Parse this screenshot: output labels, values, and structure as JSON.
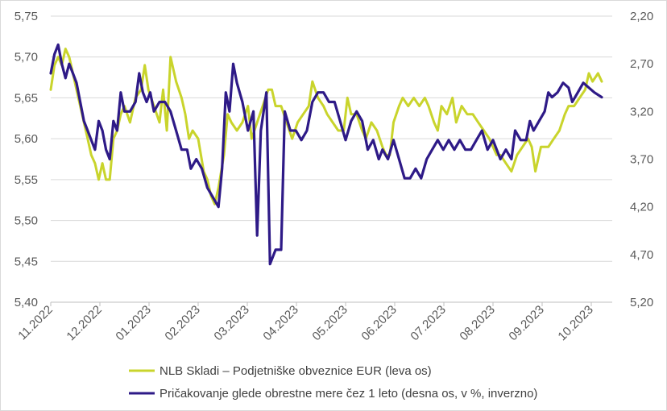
{
  "chart_data": {
    "type": "line",
    "x_labels": [
      "11.2022",
      "12.2022",
      "01.2023",
      "02.2023",
      "03.2023",
      "04.2023",
      "05.2023",
      "06.2023",
      "07.2023",
      "08.2023",
      "09.2023",
      "10.2023"
    ],
    "left_axis": {
      "ticks": [
        "5,75",
        "5,70",
        "5,65",
        "5,60",
        "5,55",
        "5,50",
        "5,45",
        "5,40"
      ],
      "ylim": [
        5.4,
        5.75
      ]
    },
    "right_axis": {
      "ticks": [
        "2,20",
        "2,70",
        "3,20",
        "3,70",
        "4,20",
        "4,70",
        "5,20"
      ],
      "ylim": [
        2.2,
        5.2
      ],
      "inverted": true
    },
    "grid": "horizontal",
    "legend_position": "bottom",
    "series": [
      {
        "name": "NLB Skladi – Podjetniške obveznice EUR (leva os)",
        "axis": "left",
        "color": "#c9d42c",
        "points": [
          [
            0.0,
            5.66
          ],
          [
            0.1,
            5.69
          ],
          [
            0.2,
            5.7
          ],
          [
            0.3,
            5.69
          ],
          [
            0.4,
            5.71
          ],
          [
            0.5,
            5.7
          ],
          [
            0.6,
            5.68
          ],
          [
            0.7,
            5.66
          ],
          [
            0.8,
            5.64
          ],
          [
            0.9,
            5.62
          ],
          [
            1.0,
            5.6
          ],
          [
            1.1,
            5.58
          ],
          [
            1.2,
            5.57
          ],
          [
            1.3,
            5.55
          ],
          [
            1.4,
            5.57
          ],
          [
            1.5,
            5.55
          ],
          [
            1.6,
            5.55
          ],
          [
            1.7,
            5.6
          ],
          [
            1.8,
            5.61
          ],
          [
            1.9,
            5.63
          ],
          [
            2.0,
            5.64
          ],
          [
            2.15,
            5.62
          ],
          [
            2.3,
            5.65
          ],
          [
            2.45,
            5.66
          ],
          [
            2.55,
            5.69
          ],
          [
            2.65,
            5.66
          ],
          [
            2.8,
            5.64
          ],
          [
            2.95,
            5.62
          ],
          [
            3.05,
            5.66
          ],
          [
            3.15,
            5.61
          ],
          [
            3.25,
            5.7
          ],
          [
            3.4,
            5.67
          ],
          [
            3.55,
            5.65
          ],
          [
            3.65,
            5.63
          ],
          [
            3.75,
            5.6
          ],
          [
            3.85,
            5.61
          ],
          [
            4.0,
            5.6
          ],
          [
            4.15,
            5.56
          ],
          [
            4.25,
            5.55
          ],
          [
            4.35,
            5.53
          ],
          [
            4.45,
            5.52
          ],
          [
            4.55,
            5.54
          ],
          [
            4.7,
            5.58
          ],
          [
            4.8,
            5.63
          ],
          [
            4.9,
            5.62
          ],
          [
            5.05,
            5.61
          ],
          [
            5.2,
            5.62
          ],
          [
            5.35,
            5.64
          ],
          [
            5.45,
            5.6
          ],
          [
            5.6,
            5.62
          ],
          [
            5.75,
            5.64
          ],
          [
            5.9,
            5.66
          ],
          [
            6.0,
            5.66
          ],
          [
            6.1,
            5.64
          ],
          [
            6.25,
            5.64
          ],
          [
            6.4,
            5.62
          ],
          [
            6.55,
            5.6
          ],
          [
            6.7,
            5.62
          ],
          [
            6.85,
            5.63
          ],
          [
            7.0,
            5.64
          ],
          [
            7.1,
            5.67
          ],
          [
            7.25,
            5.65
          ],
          [
            7.4,
            5.64
          ],
          [
            7.5,
            5.63
          ],
          [
            7.65,
            5.62
          ],
          [
            7.8,
            5.61
          ],
          [
            7.95,
            5.61
          ],
          [
            8.05,
            5.65
          ],
          [
            8.15,
            5.63
          ],
          [
            8.3,
            5.63
          ],
          [
            8.45,
            5.61
          ],
          [
            8.55,
            5.6
          ],
          [
            8.7,
            5.62
          ],
          [
            8.85,
            5.61
          ],
          [
            9.0,
            5.59
          ],
          [
            9.1,
            5.58
          ],
          [
            9.2,
            5.58
          ],
          [
            9.3,
            5.62
          ],
          [
            9.45,
            5.64
          ],
          [
            9.55,
            5.65
          ],
          [
            9.7,
            5.64
          ],
          [
            9.85,
            5.65
          ],
          [
            10.0,
            5.64
          ],
          [
            10.15,
            5.65
          ],
          [
            10.25,
            5.64
          ],
          [
            10.4,
            5.62
          ],
          [
            10.5,
            5.61
          ],
          [
            10.6,
            5.64
          ],
          [
            10.75,
            5.63
          ],
          [
            10.9,
            5.65
          ],
          [
            11.0,
            5.62
          ],
          [
            11.15,
            5.64
          ],
          [
            11.3,
            5.63
          ],
          [
            11.45,
            5.63
          ],
          [
            11.6,
            5.62
          ],
          [
            11.75,
            5.61
          ],
          [
            11.9,
            5.6
          ],
          [
            12.0,
            5.59
          ],
          [
            12.1,
            5.58
          ],
          [
            12.2,
            5.58
          ],
          [
            12.35,
            5.57
          ],
          [
            12.5,
            5.56
          ],
          [
            12.65,
            5.58
          ],
          [
            12.8,
            5.59
          ],
          [
            12.95,
            5.6
          ],
          [
            13.05,
            5.59
          ],
          [
            13.15,
            5.56
          ],
          [
            13.3,
            5.59
          ],
          [
            13.5,
            5.59
          ],
          [
            13.65,
            5.6
          ],
          [
            13.8,
            5.61
          ],
          [
            13.95,
            5.63
          ],
          [
            14.05,
            5.64
          ],
          [
            14.2,
            5.64
          ],
          [
            14.35,
            5.65
          ],
          [
            14.5,
            5.66
          ],
          [
            14.6,
            5.68
          ],
          [
            14.7,
            5.67
          ],
          [
            14.85,
            5.68
          ],
          [
            14.95,
            5.67
          ]
        ]
      },
      {
        "name": "Pričakovanje glede obrestne mere čez 1 leto (desna os, v %, inverzno)",
        "axis": "right",
        "color": "#2e1a87",
        "points": [
          [
            0.0,
            2.8
          ],
          [
            0.1,
            2.6
          ],
          [
            0.2,
            2.5
          ],
          [
            0.3,
            2.7
          ],
          [
            0.4,
            2.85
          ],
          [
            0.5,
            2.7
          ],
          [
            0.6,
            2.8
          ],
          [
            0.7,
            2.9
          ],
          [
            0.8,
            3.1
          ],
          [
            0.9,
            3.3
          ],
          [
            1.0,
            3.4
          ],
          [
            1.1,
            3.5
          ],
          [
            1.2,
            3.6
          ],
          [
            1.3,
            3.3
          ],
          [
            1.4,
            3.4
          ],
          [
            1.5,
            3.6
          ],
          [
            1.6,
            3.7
          ],
          [
            1.7,
            3.3
          ],
          [
            1.8,
            3.4
          ],
          [
            1.9,
            3.0
          ],
          [
            2.0,
            3.2
          ],
          [
            2.15,
            3.2
          ],
          [
            2.3,
            3.1
          ],
          [
            2.4,
            2.8
          ],
          [
            2.5,
            3.0
          ],
          [
            2.6,
            3.1
          ],
          [
            2.7,
            3.0
          ],
          [
            2.8,
            3.2
          ],
          [
            2.95,
            3.1
          ],
          [
            3.1,
            3.1
          ],
          [
            3.25,
            3.2
          ],
          [
            3.4,
            3.4
          ],
          [
            3.55,
            3.6
          ],
          [
            3.7,
            3.6
          ],
          [
            3.8,
            3.8
          ],
          [
            3.95,
            3.7
          ],
          [
            4.1,
            3.8
          ],
          [
            4.25,
            4.0
          ],
          [
            4.4,
            4.1
          ],
          [
            4.55,
            4.2
          ],
          [
            4.65,
            3.8
          ],
          [
            4.75,
            3.0
          ],
          [
            4.85,
            3.2
          ],
          [
            4.95,
            2.7
          ],
          [
            5.05,
            2.9
          ],
          [
            5.2,
            3.1
          ],
          [
            5.35,
            3.4
          ],
          [
            5.5,
            3.2
          ],
          [
            5.6,
            4.5
          ],
          [
            5.7,
            3.4
          ],
          [
            5.85,
            3.0
          ],
          [
            5.95,
            4.8
          ],
          [
            6.1,
            4.65
          ],
          [
            6.25,
            4.65
          ],
          [
            6.35,
            3.2
          ],
          [
            6.5,
            3.4
          ],
          [
            6.65,
            3.4
          ],
          [
            6.8,
            3.5
          ],
          [
            6.95,
            3.4
          ],
          [
            7.1,
            3.1
          ],
          [
            7.25,
            3.0
          ],
          [
            7.4,
            3.0
          ],
          [
            7.55,
            3.1
          ],
          [
            7.7,
            3.1
          ],
          [
            7.85,
            3.3
          ],
          [
            8.0,
            3.5
          ],
          [
            8.15,
            3.3
          ],
          [
            8.3,
            3.2
          ],
          [
            8.45,
            3.3
          ],
          [
            8.6,
            3.6
          ],
          [
            8.75,
            3.5
          ],
          [
            8.9,
            3.7
          ],
          [
            9.0,
            3.6
          ],
          [
            9.15,
            3.7
          ],
          [
            9.3,
            3.5
          ],
          [
            9.45,
            3.7
          ],
          [
            9.6,
            3.9
          ],
          [
            9.75,
            3.9
          ],
          [
            9.9,
            3.8
          ],
          [
            10.05,
            3.9
          ],
          [
            10.2,
            3.7
          ],
          [
            10.35,
            3.6
          ],
          [
            10.5,
            3.5
          ],
          [
            10.65,
            3.6
          ],
          [
            10.8,
            3.5
          ],
          [
            10.95,
            3.6
          ],
          [
            11.1,
            3.5
          ],
          [
            11.25,
            3.6
          ],
          [
            11.4,
            3.6
          ],
          [
            11.55,
            3.5
          ],
          [
            11.7,
            3.4
          ],
          [
            11.85,
            3.6
          ],
          [
            12.0,
            3.5
          ],
          [
            12.1,
            3.6
          ],
          [
            12.2,
            3.7
          ],
          [
            12.35,
            3.6
          ],
          [
            12.5,
            3.7
          ],
          [
            12.6,
            3.4
          ],
          [
            12.75,
            3.5
          ],
          [
            12.9,
            3.5
          ],
          [
            13.0,
            3.3
          ],
          [
            13.1,
            3.4
          ],
          [
            13.25,
            3.3
          ],
          [
            13.4,
            3.2
          ],
          [
            13.5,
            3.0
          ],
          [
            13.6,
            3.05
          ],
          [
            13.75,
            3.0
          ],
          [
            13.9,
            2.9
          ],
          [
            14.05,
            2.95
          ],
          [
            14.15,
            3.1
          ],
          [
            14.3,
            3.0
          ],
          [
            14.45,
            2.9
          ],
          [
            14.6,
            2.95
          ],
          [
            14.75,
            3.0
          ],
          [
            14.95,
            3.05
          ]
        ]
      }
    ]
  }
}
